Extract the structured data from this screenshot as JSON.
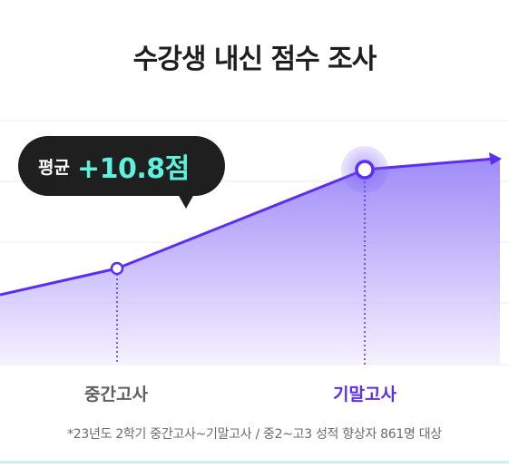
{
  "chart_data": {
    "type": "area",
    "title": "수강생 내신 점수 조사",
    "categories": [
      "중간고사",
      "기말고사"
    ],
    "highlighted_category": "기말고사",
    "callout": {
      "label": "평균",
      "value": "+10.8점"
    },
    "footnote": "*23년도 2학기 중간고사~기말고사 / 중2~고3 성적 향상자 861명 대상",
    "grid": true,
    "colors": {
      "line": "#5b2ef2",
      "fill_top": "#8f78f7",
      "fill_bottom": "#f4f1ff",
      "highlight": "#5b2ef2",
      "callout_bg": "#1f1f1f",
      "callout_value": "#5ef2de"
    }
  }
}
